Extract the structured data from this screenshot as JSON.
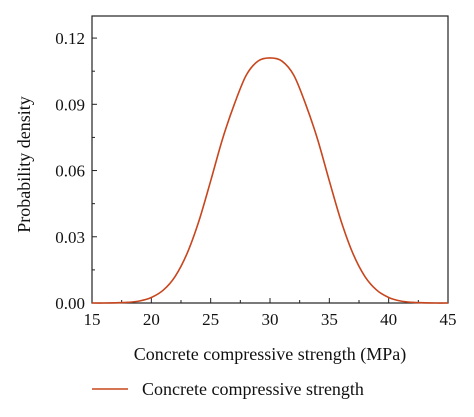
{
  "chart_data": {
    "type": "line",
    "title": "",
    "xlabel": "Concrete compressive strength (MPa)",
    "ylabel": "Probability density",
    "xlim": [
      15,
      45
    ],
    "ylim": [
      0,
      0.13
    ],
    "xticks": [
      15,
      20,
      25,
      30,
      35,
      40,
      45
    ],
    "xtick_labels": [
      "15",
      "20",
      "25",
      "30",
      "35",
      "40",
      "45"
    ],
    "yticks": [
      0,
      0.03,
      0.06,
      0.09,
      0.12
    ],
    "ytick_labels": [
      "0.00",
      "0.03",
      "0.06",
      "0.09",
      "0.12"
    ],
    "grid": false,
    "legend_position": "bottom",
    "series": [
      {
        "name": "Concrete compressive strength",
        "color": "#c8461e",
        "x": [
          15,
          16,
          17,
          18,
          19,
          20,
          21,
          22,
          23,
          24,
          25,
          26,
          27,
          28,
          29,
          30,
          31,
          32,
          33,
          34,
          35,
          36,
          37,
          38,
          39,
          40,
          41,
          42,
          43,
          44,
          45
        ],
        "y": [
          0.0,
          0.0,
          0.0001,
          0.0003,
          0.0009,
          0.0025,
          0.0058,
          0.012,
          0.0223,
          0.037,
          0.0553,
          0.0743,
          0.0901,
          0.1032,
          0.1096,
          0.111,
          0.1096,
          0.1032,
          0.0901,
          0.0743,
          0.0553,
          0.037,
          0.0223,
          0.012,
          0.0058,
          0.0025,
          0.0009,
          0.0003,
          0.0001,
          0.0,
          0.0
        ]
      }
    ]
  }
}
